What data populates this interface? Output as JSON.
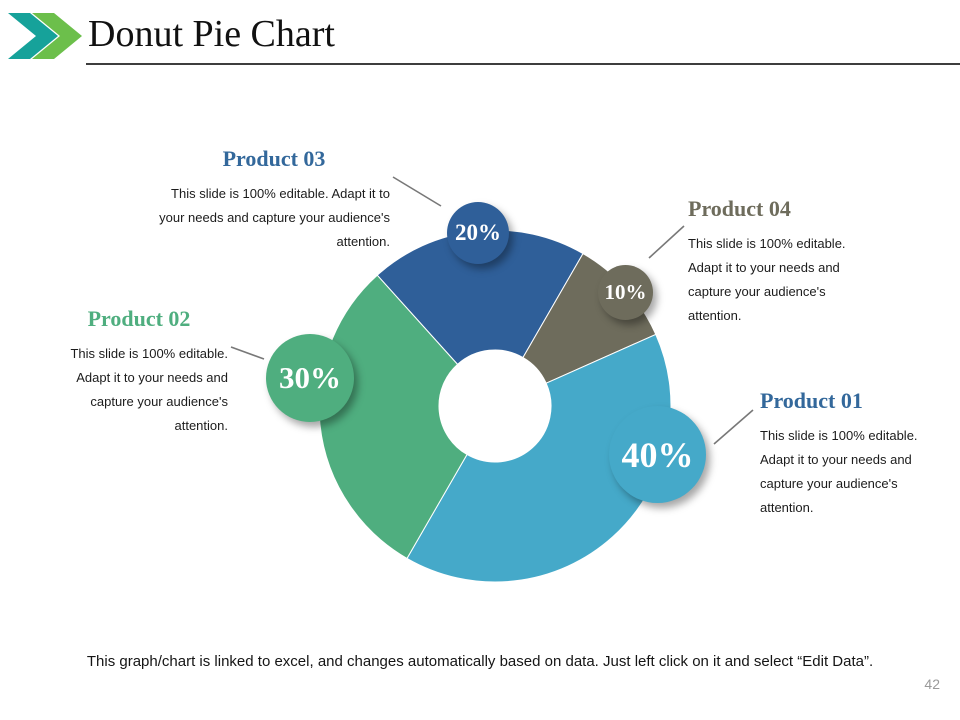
{
  "slide": {
    "title": "Donut Pie Chart",
    "page_number": "42",
    "footer_note": "This graph/chart is linked to excel, and changes automatically based on data. Just left click on it and select “Edit Data”.",
    "accent_colors": {
      "chevron_teal": "#16a29a",
      "chevron_green": "#6cbf4b",
      "rule_gray": "#3d3d3d"
    }
  },
  "chart_data": {
    "type": "pie",
    "subtype": "donut",
    "title": "Donut Pie Chart",
    "direction": "clockwise",
    "start_angle_deg": -42,
    "inner_radius_ratio": 0.32,
    "legend_position": "callouts",
    "segments": [
      {
        "label": "Product 03",
        "value": 20,
        "badge": "20%",
        "color": "#2f5f99"
      },
      {
        "label": "Product 04",
        "value": 10,
        "badge": "10%",
        "color": "#6e6c5c"
      },
      {
        "label": "Product 01",
        "value": 40,
        "badge": "40%",
        "color": "#45a9c9"
      },
      {
        "label": "Product 02",
        "value": 30,
        "badge": "30%",
        "color": "#4fae7f"
      }
    ]
  },
  "callouts": {
    "product03": {
      "title": "Product 03",
      "color": "#33689b",
      "body": "This slide is 100% editable. Adapt it to your needs and capture your audience's attention."
    },
    "product04": {
      "title": "Product 04",
      "color": "#6e6c5c",
      "body": "This slide is 100% editable. Adapt it to your needs and capture your audience's attention."
    },
    "product02": {
      "title": "Product 02",
      "color": "#4fae7f",
      "body": "This slide is 100% editable. Adapt it to your needs and capture your audience's attention."
    },
    "product01": {
      "title": "Product 01",
      "color": "#33689b",
      "body": "This slide is 100% editable. Adapt it to your needs and capture your audience's attention."
    }
  }
}
